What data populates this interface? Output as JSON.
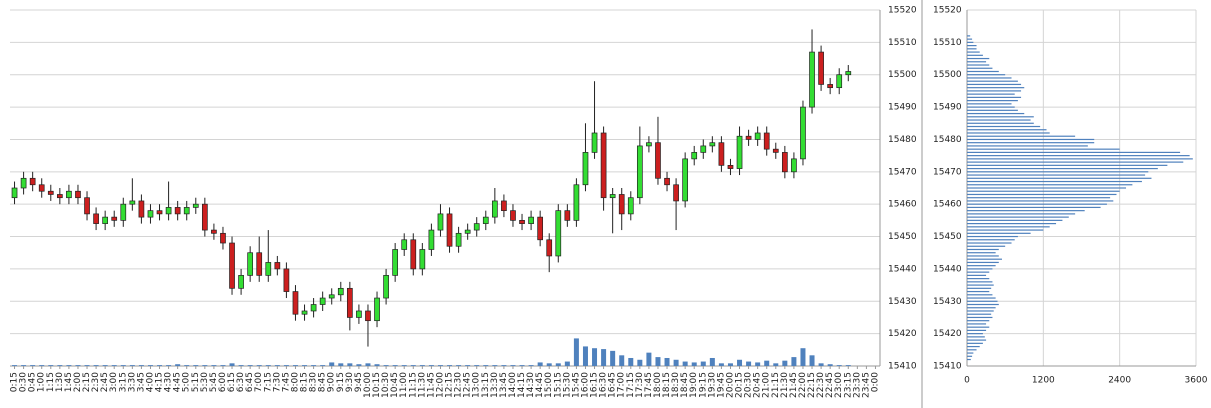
{
  "chart_data": [
    {
      "type": "candlestick",
      "categories": [
        "0:15",
        "0:30",
        "0:45",
        "1:00",
        "1:15",
        "1:30",
        "1:45",
        "2:00",
        "2:15",
        "2:30",
        "2:45",
        "3:00",
        "3:15",
        "3:30",
        "3:45",
        "4:00",
        "4:15",
        "4:30",
        "4:45",
        "5:00",
        "5:15",
        "5:30",
        "5:45",
        "6:00",
        "6:15",
        "6:30",
        "6:45",
        "7:00",
        "7:15",
        "7:30",
        "7:45",
        "8:00",
        "8:15",
        "8:30",
        "8:45",
        "9:00",
        "9:15",
        "9:30",
        "9:45",
        "10:00",
        "10:15",
        "10:30",
        "10:45",
        "11:00",
        "11:15",
        "11:30",
        "11:45",
        "12:00",
        "12:15",
        "12:30",
        "12:45",
        "13:00",
        "13:15",
        "13:30",
        "13:45",
        "14:00",
        "14:15",
        "14:30",
        "14:45",
        "15:00",
        "15:15",
        "15:30",
        "15:45",
        "16:00",
        "16:15",
        "16:30",
        "16:45",
        "17:00",
        "17:15",
        "17:30",
        "17:45",
        "18:00",
        "18:15",
        "18:30",
        "18:45",
        "19:00",
        "19:15",
        "19:30",
        "19:45",
        "20:00",
        "20:15",
        "20:30",
        "20:45",
        "21:00",
        "21:15",
        "21:30",
        "21:45",
        "22:00",
        "22:15",
        "22:30",
        "22:45",
        "23:00",
        "23:15",
        "23:30",
        "23:45",
        "0:00"
      ],
      "open": [
        15462,
        15465,
        15468,
        15466,
        15464,
        15463,
        15462,
        15464,
        15462,
        15457,
        15454,
        15456,
        15455,
        15460,
        15461,
        15456,
        15458,
        15457,
        15459,
        15457,
        15459,
        15460,
        15452,
        15451,
        15448,
        15434,
        15438,
        15445,
        15438,
        15442,
        15440,
        15433,
        15426,
        15427,
        15429,
        15431,
        15432,
        15434,
        15425,
        15427,
        15424,
        15431,
        15438,
        15446,
        15449,
        15440,
        15446,
        15452,
        15457,
        15447,
        15451,
        15452,
        15454,
        15456,
        15461,
        15458,
        15455,
        15454,
        15456,
        15449,
        15444,
        15458,
        15455,
        15466,
        15476,
        15482,
        15462,
        15463,
        15457,
        15462,
        15478,
        15479,
        15468,
        15466,
        15461,
        15474,
        15476,
        15478,
        15479,
        15472,
        15471,
        15481,
        15480,
        15482,
        15477,
        15476,
        15470,
        15474,
        15490,
        15507,
        15497,
        15496,
        15500,
        null,
        null,
        null
      ],
      "high": [
        15467,
        15470,
        15470,
        15468,
        15466,
        15465,
        15466,
        15466,
        15464,
        15459,
        15458,
        15458,
        15462,
        15468,
        15463,
        15460,
        15460,
        15467,
        15461,
        15461,
        15462,
        15462,
        15454,
        15453,
        15450,
        15440,
        15447,
        15450,
        15452,
        15444,
        15442,
        15435,
        15429,
        15431,
        15433,
        15434,
        15436,
        15436,
        15429,
        15429,
        15433,
        15440,
        15448,
        15451,
        15451,
        15448,
        15454,
        15460,
        15459,
        15453,
        15454,
        15456,
        15458,
        15465,
        15463,
        15460,
        15457,
        15458,
        15458,
        15451,
        15460,
        15460,
        15468,
        15485,
        15498,
        15484,
        15465,
        15465,
        15464,
        15484,
        15481,
        15487,
        15470,
        15468,
        15476,
        15478,
        15480,
        15481,
        15481,
        15474,
        15484,
        15483,
        15484,
        15484,
        15479,
        15478,
        15476,
        15492,
        15514,
        15509,
        15499,
        15502,
        15503,
        null,
        null,
        null
      ],
      "low": [
        15460,
        15463,
        15464,
        15462,
        15461,
        15460,
        15460,
        15460,
        15455,
        15452,
        15452,
        15453,
        15453,
        15458,
        15454,
        15454,
        15455,
        15455,
        15455,
        15455,
        15457,
        15450,
        15449,
        15446,
        15432,
        15432,
        15436,
        15436,
        15436,
        15438,
        15431,
        15424,
        15424,
        15425,
        15427,
        15429,
        15430,
        15421,
        15423,
        15416,
        15422,
        15429,
        15436,
        15444,
        15438,
        15438,
        15444,
        15450,
        15445,
        15445,
        15449,
        15450,
        15452,
        15454,
        15456,
        15453,
        15452,
        15452,
        15447,
        15439,
        15442,
        15453,
        15453,
        15464,
        15474,
        15458,
        15451,
        15452,
        15455,
        15460,
        15476,
        15466,
        15464,
        15452,
        15459,
        15472,
        15474,
        15476,
        15470,
        15469,
        15469,
        15478,
        15478,
        15475,
        15474,
        15468,
        15468,
        15472,
        15488,
        15495,
        15494,
        15494,
        15498,
        null,
        null,
        null
      ],
      "close": [
        15465,
        15468,
        15466,
        15464,
        15463,
        15462,
        15464,
        15462,
        15457,
        15454,
        15456,
        15455,
        15460,
        15461,
        15456,
        15458,
        15457,
        15459,
        15457,
        15459,
        15460,
        15452,
        15451,
        15448,
        15434,
        15438,
        15445,
        15438,
        15442,
        15440,
        15433,
        15426,
        15427,
        15429,
        15431,
        15432,
        15434,
        15425,
        15427,
        15424,
        15431,
        15438,
        15446,
        15449,
        15440,
        15446,
        15452,
        15457,
        15447,
        15451,
        15452,
        15454,
        15456,
        15461,
        15458,
        15455,
        15454,
        15456,
        15449,
        15444,
        15458,
        15455,
        15466,
        15476,
        15482,
        15462,
        15463,
        15457,
        15462,
        15478,
        15479,
        15468,
        15466,
        15461,
        15474,
        15476,
        15478,
        15479,
        15472,
        15471,
        15481,
        15480,
        15482,
        15477,
        15476,
        15470,
        15474,
        15490,
        15507,
        15497,
        15496,
        15500,
        15501,
        null,
        null,
        null
      ],
      "volume": [
        1,
        1,
        1,
        1,
        1,
        1,
        1,
        1,
        1,
        1,
        1,
        1,
        1,
        1,
        1,
        1,
        1,
        1,
        2,
        1,
        1,
        1,
        1,
        1,
        3,
        1,
        1,
        1,
        1,
        1,
        1,
        1,
        1,
        1,
        1,
        4,
        3,
        3,
        2,
        3,
        2,
        1,
        1,
        1,
        1,
        1,
        1,
        1,
        1,
        1,
        1,
        1,
        1,
        1,
        1,
        1,
        1,
        1,
        4,
        3,
        3,
        5,
        31,
        22,
        20,
        19,
        17,
        12,
        9,
        7,
        15,
        10,
        9,
        7,
        5,
        4,
        5,
        9,
        3,
        3,
        7,
        5,
        4,
        6,
        3,
        6,
        10,
        20,
        12,
        3,
        2,
        1,
        1,
        null,
        null,
        null
      ],
      "ylim": [
        15410,
        15520
      ],
      "yticks": [
        15410,
        15420,
        15430,
        15440,
        15450,
        15460,
        15470,
        15480,
        15490,
        15500,
        15510,
        15520
      ],
      "y2lim": [
        0,
        400
      ],
      "grid": true,
      "up_color": "#33dd33",
      "down_color": "#cc1f1f",
      "volume_color": "#4f81bd"
    },
    {
      "type": "bar",
      "orientation": "horizontal",
      "y": [
        15412,
        15413,
        15414,
        15415,
        15416,
        15417,
        15418,
        15419,
        15420,
        15421,
        15422,
        15423,
        15424,
        15425,
        15426,
        15427,
        15428,
        15429,
        15430,
        15431,
        15432,
        15433,
        15434,
        15435,
        15436,
        15437,
        15438,
        15439,
        15440,
        15441,
        15442,
        15443,
        15444,
        15445,
        15446,
        15447,
        15448,
        15449,
        15450,
        15451,
        15452,
        15453,
        15454,
        15455,
        15456,
        15457,
        15458,
        15459,
        15460,
        15461,
        15462,
        15463,
        15464,
        15465,
        15466,
        15467,
        15468,
        15469,
        15470,
        15471,
        15472,
        15473,
        15474,
        15475,
        15476,
        15477,
        15478,
        15479,
        15480,
        15481,
        15482,
        15483,
        15484,
        15485,
        15486,
        15487,
        15488,
        15489,
        15490,
        15491,
        15492,
        15493,
        15494,
        15495,
        15496,
        15497,
        15498,
        15499,
        15500,
        15501,
        15502,
        15503,
        15504,
        15505,
        15506,
        15507,
        15508,
        15509,
        15510,
        15511,
        15512
      ],
      "values": [
        60,
        80,
        100,
        150,
        200,
        250,
        300,
        280,
        250,
        300,
        350,
        300,
        350,
        400,
        380,
        420,
        450,
        500,
        480,
        450,
        400,
        350,
        380,
        420,
        400,
        350,
        300,
        350,
        400,
        450,
        500,
        550,
        500,
        450,
        500,
        600,
        700,
        750,
        800,
        1000,
        1200,
        1300,
        1400,
        1500,
        1600,
        1700,
        1850,
        2100,
        2200,
        2300,
        2250,
        2350,
        2400,
        2500,
        2600,
        2750,
        2900,
        2800,
        2850,
        3000,
        3150,
        3400,
        3550,
        3500,
        3350,
        2400,
        1900,
        2000,
        2000,
        1700,
        1300,
        1250,
        1150,
        1050,
        1000,
        1050,
        900,
        800,
        750,
        700,
        800,
        850,
        750,
        850,
        900,
        850,
        800,
        700,
        600,
        500,
        400,
        350,
        300,
        350,
        250,
        200,
        150,
        150,
        100,
        80,
        50
      ],
      "xlim": [
        0,
        3600
      ],
      "xticks": [
        0,
        1200,
        2400,
        3600
      ],
      "ylim": [
        15410,
        15520
      ],
      "yticks": [
        15410,
        15420,
        15430,
        15440,
        15450,
        15460,
        15470,
        15480,
        15490,
        15500,
        15510,
        15520
      ],
      "grid": true,
      "color": "#4f81bd"
    }
  ]
}
